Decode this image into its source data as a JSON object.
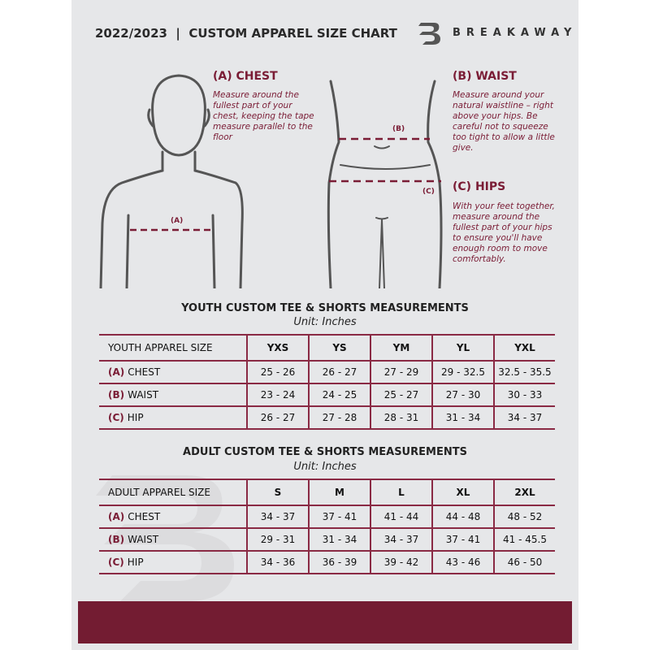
{
  "header": {
    "title": "2022/2023  |  CUSTOM APPAREL SIZE CHART",
    "brand": "BREAKAWAY"
  },
  "guide": {
    "chest": {
      "heading": "(A) CHEST",
      "text": "Measure around the fullest part of your chest, keeping the tape measure parallel to the floor",
      "marker": "(A)"
    },
    "waist": {
      "heading": "(B) WAIST",
      "text": "Measure around your natural waistline – right above your hips. Be careful not to squeeze too tight to allow a little give.",
      "marker": "(B)"
    },
    "hips": {
      "heading": "(C) HIPS",
      "text": "With your feet together, measure around the fullest part of your hips to ensure you'll have enough room to move comfortably.",
      "marker": "(C)"
    }
  },
  "youth": {
    "title": "YOUTH CUSTOM TEE & SHORTS MEASUREMENTS",
    "unit": "Unit: Inches",
    "header": "YOUTH APPAREL SIZE",
    "sizes": [
      "YXS",
      "YS",
      "YM",
      "YL",
      "YXL"
    ],
    "rows": [
      {
        "prefix": "(A)",
        "label": "CHEST",
        "values": [
          "25 - 26",
          "26 - 27",
          "27 - 29",
          "29 - 32.5",
          "32.5 - 35.5"
        ]
      },
      {
        "prefix": "(B)",
        "label": "WAIST",
        "values": [
          "23 - 24",
          "24 - 25",
          "25 - 27",
          "27 - 30",
          "30 - 33"
        ]
      },
      {
        "prefix": "(C)",
        "label": "HIP",
        "values": [
          "26 - 27",
          "27 - 28",
          "28 - 31",
          "31 - 34",
          "34 - 37"
        ]
      }
    ]
  },
  "adult": {
    "title": "ADULT CUSTOM TEE & SHORTS MEASUREMENTS",
    "unit": "Unit: Inches",
    "header": "ADULT APPAREL SIZE",
    "sizes": [
      "S",
      "M",
      "L",
      "XL",
      "2XL"
    ],
    "rows": [
      {
        "prefix": "(A)",
        "label": "CHEST",
        "values": [
          "34 - 37",
          "37 - 41",
          "41 - 44",
          "44 - 48",
          "48 - 52"
        ]
      },
      {
        "prefix": "(B)",
        "label": "WAIST",
        "values": [
          "29 - 31",
          "31 - 34",
          "34 - 37",
          "37 - 41",
          "41 - 45.5"
        ]
      },
      {
        "prefix": "(C)",
        "label": "HIP",
        "values": [
          "34 - 36",
          "36 - 39",
          "39 - 42",
          "43 - 46",
          "46 - 50"
        ]
      }
    ]
  },
  "colors": {
    "accent": "#7a1c35",
    "footer": "#731c32",
    "panel": "#e6e7e9"
  }
}
